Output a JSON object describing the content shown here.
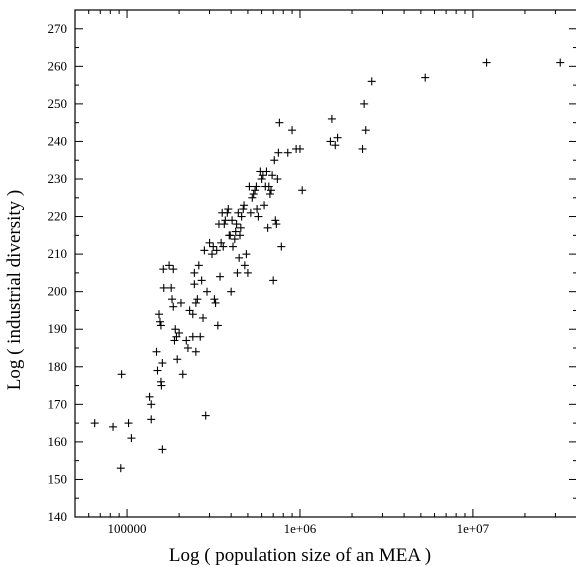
{
  "chart_data": {
    "type": "scatter",
    "title": "",
    "xlabel": "Log ( population size of  an MEA )",
    "ylabel": "Log ( industrial diversity )",
    "xscale": "log",
    "xlim": [
      50000,
      40000000
    ],
    "ylim": [
      140,
      275
    ],
    "grid": false,
    "legend": "none",
    "marker": "plus",
    "color": "#000000",
    "x_tick_labels": [
      {
        "value": 100000,
        "label": "100000"
      },
      {
        "value": 1000000,
        "label": "1e+06"
      },
      {
        "value": 10000000,
        "label": "1e+07"
      }
    ],
    "y_ticks": [
      140,
      150,
      160,
      170,
      180,
      190,
      200,
      210,
      220,
      230,
      240,
      250,
      260,
      270
    ],
    "series": [
      {
        "points": [
          [
            65000,
            165
          ],
          [
            83000,
            164
          ],
          [
            92000,
            153
          ],
          [
            93000,
            178
          ],
          [
            102000,
            165
          ],
          [
            106000,
            161
          ],
          [
            135000,
            172
          ],
          [
            138000,
            170
          ],
          [
            138000,
            166
          ],
          [
            148000,
            184
          ],
          [
            150000,
            179
          ],
          [
            153000,
            194
          ],
          [
            155000,
            192
          ],
          [
            157000,
            191
          ],
          [
            157000,
            176
          ],
          [
            158000,
            175
          ],
          [
            160000,
            181
          ],
          [
            160000,
            158
          ],
          [
            162000,
            206
          ],
          [
            163000,
            201
          ],
          [
            175000,
            207
          ],
          [
            180000,
            201
          ],
          [
            182000,
            198
          ],
          [
            185000,
            206
          ],
          [
            185000,
            196
          ],
          [
            188000,
            187
          ],
          [
            190000,
            190
          ],
          [
            193000,
            188
          ],
          [
            195000,
            182
          ],
          [
            200000,
            189
          ],
          [
            205000,
            197
          ],
          [
            210000,
            178
          ],
          [
            220000,
            187
          ],
          [
            225000,
            185
          ],
          [
            230000,
            195
          ],
          [
            240000,
            188
          ],
          [
            240000,
            194
          ],
          [
            245000,
            202
          ],
          [
            245000,
            205
          ],
          [
            250000,
            197
          ],
          [
            250000,
            184
          ],
          [
            255000,
            198
          ],
          [
            260000,
            207
          ],
          [
            265000,
            188
          ],
          [
            270000,
            203
          ],
          [
            275000,
            193
          ],
          [
            280000,
            211
          ],
          [
            285000,
            167
          ],
          [
            290000,
            200
          ],
          [
            300000,
            213
          ],
          [
            310000,
            210
          ],
          [
            315000,
            212
          ],
          [
            320000,
            198
          ],
          [
            325000,
            197
          ],
          [
            330000,
            211
          ],
          [
            335000,
            191
          ],
          [
            340000,
            218
          ],
          [
            345000,
            204
          ],
          [
            350000,
            213
          ],
          [
            355000,
            221
          ],
          [
            360000,
            212
          ],
          [
            365000,
            218
          ],
          [
            370000,
            219
          ],
          [
            380000,
            221
          ],
          [
            385000,
            222
          ],
          [
            390000,
            215
          ],
          [
            395000,
            215
          ],
          [
            400000,
            200
          ],
          [
            405000,
            219
          ],
          [
            410000,
            212
          ],
          [
            420000,
            214
          ],
          [
            425000,
            216
          ],
          [
            430000,
            218
          ],
          [
            435000,
            205
          ],
          [
            440000,
            221
          ],
          [
            445000,
            209
          ],
          [
            450000,
            215
          ],
          [
            455000,
            217
          ],
          [
            460000,
            220
          ],
          [
            470000,
            222
          ],
          [
            475000,
            223
          ],
          [
            480000,
            207
          ],
          [
            490000,
            210
          ],
          [
            500000,
            205
          ],
          [
            510000,
            228
          ],
          [
            520000,
            221
          ],
          [
            530000,
            225
          ],
          [
            540000,
            226
          ],
          [
            550000,
            227
          ],
          [
            560000,
            228
          ],
          [
            565000,
            222
          ],
          [
            575000,
            220
          ],
          [
            590000,
            232
          ],
          [
            600000,
            230
          ],
          [
            610000,
            231
          ],
          [
            620000,
            223
          ],
          [
            630000,
            228
          ],
          [
            640000,
            232
          ],
          [
            650000,
            217
          ],
          [
            660000,
            228
          ],
          [
            670000,
            226
          ],
          [
            680000,
            227
          ],
          [
            690000,
            231
          ],
          [
            700000,
            203
          ],
          [
            710000,
            235
          ],
          [
            720000,
            219
          ],
          [
            730000,
            218
          ],
          [
            740000,
            230
          ],
          [
            750000,
            237
          ],
          [
            760000,
            245
          ],
          [
            780000,
            212
          ],
          [
            850000,
            237
          ],
          [
            900000,
            243
          ],
          [
            950000,
            238
          ],
          [
            1000000,
            238
          ],
          [
            1030000,
            227
          ],
          [
            1500000,
            240
          ],
          [
            1530000,
            246
          ],
          [
            1600000,
            239
          ],
          [
            1650000,
            241
          ],
          [
            2300000,
            238
          ],
          [
            2350000,
            250
          ],
          [
            2400000,
            243
          ],
          [
            2600000,
            256
          ],
          [
            5300000,
            257
          ],
          [
            12000000,
            261
          ],
          [
            32000000,
            261
          ]
        ]
      }
    ]
  }
}
